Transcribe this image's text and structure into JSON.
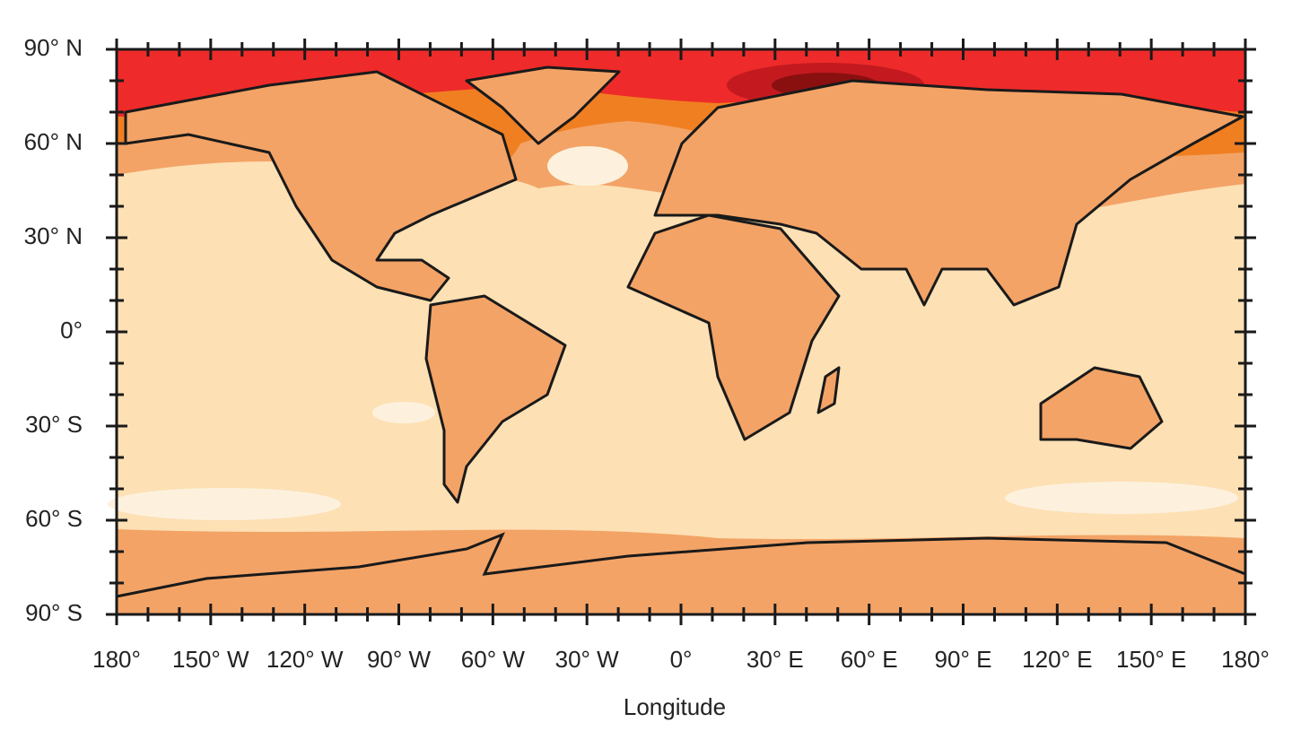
{
  "map": {
    "x_axis": {
      "label": "Longitude",
      "ticks": [
        {
          "value": -180,
          "label": "180°"
        },
        {
          "value": -150,
          "label": "150° W"
        },
        {
          "value": -120,
          "label": "120° W"
        },
        {
          "value": -90,
          "label": "90° W"
        },
        {
          "value": -60,
          "label": "60° W"
        },
        {
          "value": -30,
          "label": "30° W"
        },
        {
          "value": 0,
          "label": "0°"
        },
        {
          "value": 30,
          "label": "30° E"
        },
        {
          "value": 60,
          "label": "60° E"
        },
        {
          "value": 90,
          "label": "90° E"
        },
        {
          "value": 120,
          "label": "120° E"
        },
        {
          "value": 150,
          "label": "150° E"
        },
        {
          "value": 180,
          "label": "180°"
        }
      ]
    },
    "y_axis": {
      "ticks": [
        {
          "value": 90,
          "label": "90° N"
        },
        {
          "value": 60,
          "label": "60° N"
        },
        {
          "value": 30,
          "label": "30° N"
        },
        {
          "value": 0,
          "label": "0°"
        },
        {
          "value": -30,
          "label": "30° S"
        },
        {
          "value": -60,
          "label": "60° S"
        },
        {
          "value": -90,
          "label": "90° S"
        }
      ]
    }
  }
}
